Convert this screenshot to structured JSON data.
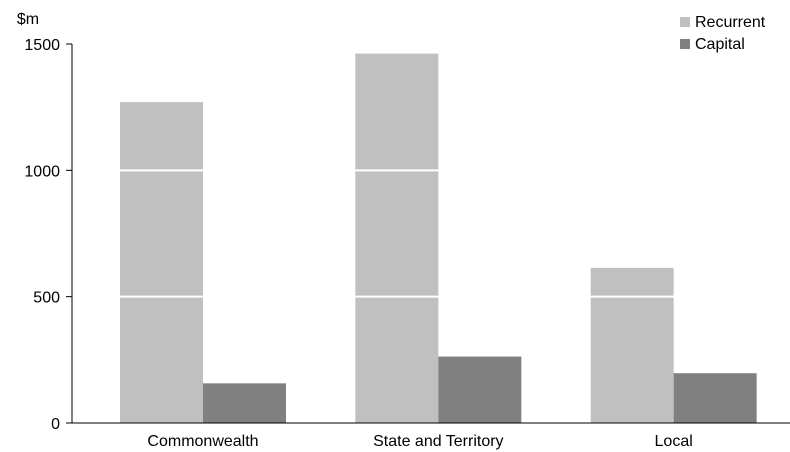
{
  "chart_data": {
    "type": "bar",
    "unit_label": "$m",
    "categories": [
      "Commonwealth",
      "State and Territory",
      "Local"
    ],
    "series": [
      {
        "name": "Recurrent",
        "values": [
          1270,
          1462,
          614
        ],
        "color": "#c0c0c0"
      },
      {
        "name": "Capital",
        "values": [
          157,
          263,
          197
        ],
        "color": "#808080"
      }
    ],
    "ylim": [
      0,
      1500
    ],
    "yticks": [
      0,
      500,
      1000,
      1500
    ],
    "ytick_labels": [
      "0",
      "500",
      "1000",
      "1500"
    ],
    "grid_lines_on_bars": [
      500,
      1000
    ],
    "legend_position": "top-right"
  }
}
